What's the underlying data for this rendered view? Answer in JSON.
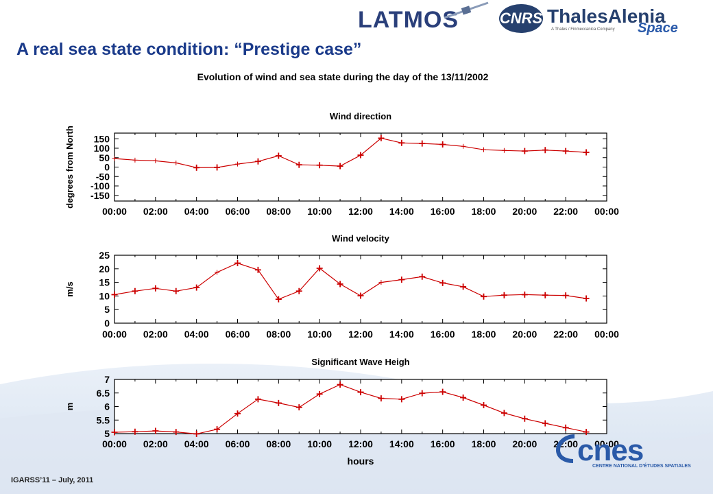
{
  "slide": {
    "title": "A real sea state condition: “Prestige case”",
    "footer": "IGARSS’11 – July, 2011"
  },
  "logos": {
    "latmos": "LATMOS",
    "cnrs": "CNRS",
    "thales_name": "ThalesAlenia",
    "thales_space": "Space",
    "thales_sub": "A Thales / Finmeccanica Company",
    "cnes_name": "cnes",
    "cnes_sub": "CENTRE NATIONAL D’ÉTUDES SPATIALES"
  },
  "figure": {
    "main_title": "Evolution of wind and sea state during the day of the 13/11/2002"
  },
  "colors": {
    "series": "#cc0000",
    "title": "#1a3a8a"
  },
  "chart_data": [
    {
      "type": "line",
      "title": "Wind direction",
      "xlabel": "",
      "ylabel": "degrees from North",
      "x_ticks": [
        "00:00",
        "02:00",
        "04:00",
        "06:00",
        "08:00",
        "10:00",
        "12:00",
        "14:00",
        "16:00",
        "18:00",
        "20:00",
        "22:00",
        "00:00"
      ],
      "y_ticks": [
        "150",
        "100",
        "50",
        "0",
        "-50",
        "-100",
        "-150"
      ],
      "xlim": [
        0,
        24
      ],
      "ylim": [
        -180,
        180
      ],
      "y_tick_values": [
        150,
        100,
        50,
        0,
        -50,
        -100,
        -150
      ],
      "x": [
        0,
        1,
        2,
        3,
        4,
        5,
        6,
        7,
        8,
        9,
        10,
        11,
        12,
        13,
        14,
        15,
        16,
        17,
        18,
        19,
        20,
        21,
        22,
        23
      ],
      "values": [
        45,
        37,
        33,
        22,
        -3,
        -2,
        16,
        30,
        60,
        12,
        10,
        5,
        63,
        153,
        128,
        125,
        120,
        110,
        92,
        88,
        85,
        90,
        85,
        78
      ],
      "markers": [
        0,
        0,
        0,
        0,
        1,
        1,
        0,
        1,
        1,
        1,
        1,
        1,
        1,
        1,
        1,
        1,
        1,
        0,
        0,
        0,
        1,
        1,
        1,
        1
      ],
      "grid": false
    },
    {
      "type": "line",
      "title": "Wind velocity",
      "xlabel": "",
      "ylabel": "m/s",
      "x_ticks": [
        "00:00",
        "02:00",
        "04:00",
        "06:00",
        "08:00",
        "10:00",
        "12:00",
        "14:00",
        "16:00",
        "18:00",
        "20:00",
        "22:00",
        "00:00"
      ],
      "y_ticks": [
        "25",
        "20",
        "15",
        "10",
        "5",
        "0"
      ],
      "xlim": [
        0,
        24
      ],
      "ylim": [
        0,
        25
      ],
      "y_tick_values": [
        25,
        20,
        15,
        10,
        5,
        0
      ],
      "x": [
        0,
        1,
        2,
        3,
        4,
        5,
        6,
        7,
        8,
        9,
        10,
        11,
        12,
        13,
        14,
        15,
        16,
        17,
        18,
        19,
        20,
        21,
        22,
        23
      ],
      "values": [
        10.5,
        11.8,
        12.8,
        11.8,
        13.1,
        18.7,
        22.1,
        19.6,
        8.8,
        11.8,
        20.2,
        14.4,
        10.1,
        15,
        16,
        17.1,
        14.8,
        13.4,
        9.8,
        10.3,
        10.5,
        10.3,
        10.2,
        9.1
      ],
      "markers": [
        1,
        1,
        1,
        1,
        1,
        0,
        1,
        1,
        1,
        1,
        1,
        1,
        1,
        0,
        1,
        1,
        1,
        1,
        1,
        1,
        1,
        1,
        1,
        1
      ],
      "grid": false
    },
    {
      "type": "line",
      "title": "Significant Wave Heigh",
      "xlabel": "hours",
      "ylabel": "m",
      "x_ticks": [
        "00:00",
        "02:00",
        "04:00",
        "06:00",
        "08:00",
        "10:00",
        "12:00",
        "14:00",
        "16:00",
        "18:00",
        "20:00",
        "22:00",
        "00:00"
      ],
      "y_ticks": [
        "7",
        "6.5",
        "6",
        "5.5",
        "5"
      ],
      "xlim": [
        0,
        24
      ],
      "ylim": [
        5,
        7
      ],
      "y_tick_values": [
        7,
        6.5,
        6,
        5.5,
        5
      ],
      "x": [
        0,
        1,
        2,
        3,
        4,
        5,
        6,
        7,
        8,
        9,
        10,
        11,
        12,
        13,
        14,
        15,
        16,
        17,
        18,
        19,
        20,
        21,
        22,
        23
      ],
      "values": [
        5.05,
        5.07,
        5.1,
        5.06,
        4.99,
        5.16,
        5.74,
        6.27,
        6.13,
        5.97,
        6.46,
        6.81,
        6.53,
        6.3,
        6.27,
        6.49,
        6.54,
        6.33,
        6.05,
        5.76,
        5.55,
        5.38,
        5.22,
        5.06
      ],
      "markers": [
        1,
        1,
        1,
        1,
        1,
        1,
        1,
        1,
        1,
        1,
        1,
        1,
        1,
        1,
        1,
        1,
        1,
        1,
        1,
        1,
        1,
        1,
        1,
        1
      ],
      "grid": false
    }
  ]
}
